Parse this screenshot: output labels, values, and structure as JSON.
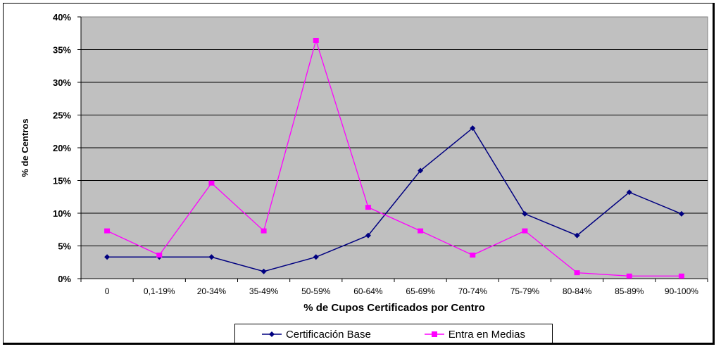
{
  "chart_data": {
    "type": "line",
    "title": "",
    "xlabel": "% de Cupos Certificados por Centro",
    "ylabel": "% de Centros",
    "ylim": [
      0,
      40
    ],
    "yticks": [
      "0%",
      "5%",
      "10%",
      "15%",
      "20%",
      "25%",
      "30%",
      "35%",
      "40%"
    ],
    "grid": true,
    "legend": "bottom",
    "categories": [
      "0",
      "0,1-19%",
      "20-34%",
      "35-49%",
      "50-59%",
      "60-64%",
      "65-69%",
      "70-74%",
      "75-79%",
      "80-84%",
      "85-89%",
      "90-100%"
    ],
    "series": [
      {
        "name": "Certificación Base",
        "color": "#000080",
        "marker": "diamond",
        "values": [
          3.3,
          3.3,
          3.3,
          1.1,
          3.3,
          6.6,
          16.5,
          23.0,
          9.9,
          6.6,
          13.2,
          9.9
        ]
      },
      {
        "name": "Entra en Medias",
        "color": "#FF00FF",
        "marker": "square",
        "values": [
          7.3,
          3.6,
          14.6,
          7.3,
          36.4,
          10.9,
          7.3,
          3.6,
          7.3,
          0.9,
          0.4,
          0.4
        ]
      }
    ],
    "plot_background": "#C0C0C0"
  }
}
